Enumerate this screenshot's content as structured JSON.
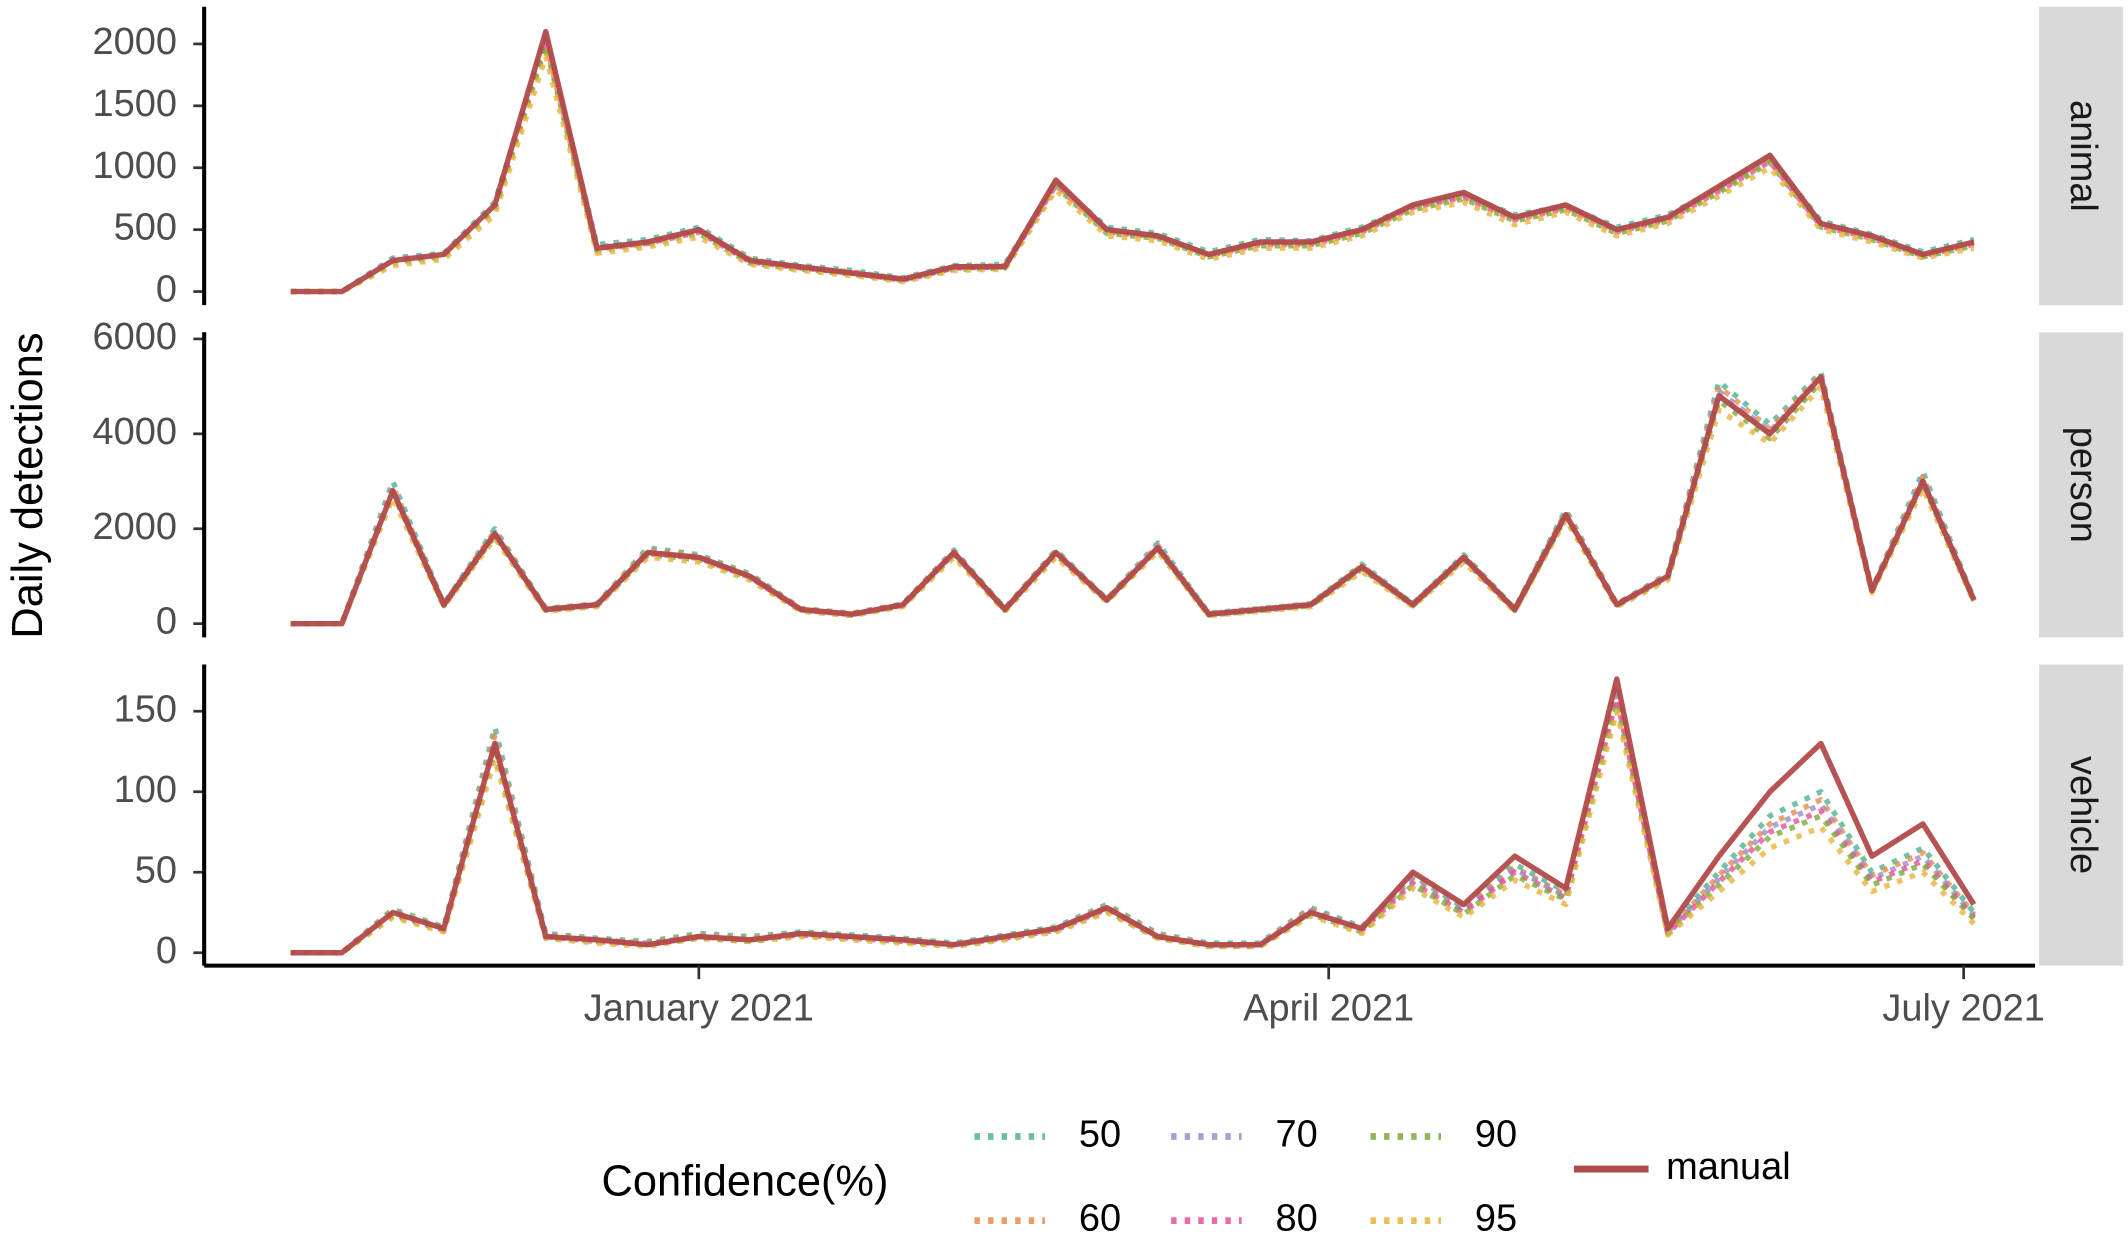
{
  "chart_data": {
    "type": "line",
    "ylabel": "Daily detections",
    "legend_title": "Confidence(%)",
    "xlim": [
      2020.806,
      2021.524
    ],
    "xticks": [
      {
        "value": 2021,
        "label": "January 2021"
      },
      {
        "value": 2021.247,
        "label": "April 2021"
      },
      {
        "value": 2021.496,
        "label": "July 2021"
      }
    ],
    "x": [
      2020.84,
      2020.86,
      2020.88,
      2020.9,
      2020.92,
      2020.94,
      2020.96,
      2020.98,
      2021.0,
      2021.02,
      2021.04,
      2021.06,
      2021.08,
      2021.1,
      2021.12,
      2021.14,
      2021.16,
      2021.18,
      2021.2,
      2021.22,
      2021.24,
      2021.26,
      2021.28,
      2021.3,
      2021.32,
      2021.34,
      2021.36,
      2021.38,
      2021.4,
      2021.42,
      2021.44,
      2021.46,
      2021.48,
      2021.5
    ],
    "facets": [
      {
        "label": "animal",
        "ylim": [
          -110,
          2300
        ],
        "yticks": [
          0,
          500,
          1000,
          1500,
          2000
        ],
        "series": [
          {
            "name": "50",
            "color": "#4db392",
            "line": "dotted",
            "values": [
              0,
              0,
              270,
              310,
              720,
              2050,
              380,
              420,
              520,
              270,
              210,
              170,
              110,
              210,
              220,
              880,
              520,
              470,
              320,
              420,
              410,
              520,
              690,
              780,
              620,
              690,
              520,
              620,
              830,
              1080,
              570,
              460,
              320,
              420
            ]
          },
          {
            "name": "60",
            "color": "#e98b4c",
            "line": "dotted",
            "values": [
              0,
              0,
              240,
              290,
              690,
              2000,
              340,
              390,
              490,
              260,
              190,
              160,
              100,
              200,
              210,
              870,
              490,
              440,
              300,
              390,
              390,
              490,
              680,
              770,
              590,
              680,
              490,
              590,
              820,
              1060,
              540,
              440,
              290,
              390
            ]
          },
          {
            "name": "70",
            "color": "#9b8fc8",
            "line": "dotted",
            "values": [
              0,
              0,
              260,
              300,
              700,
              2080,
              360,
              400,
              500,
              250,
              200,
              150,
              100,
              190,
              200,
              890,
              500,
              450,
              290,
              400,
              400,
              500,
              700,
              790,
              600,
              700,
              500,
              600,
              840,
              1090,
              550,
              450,
              300,
              400
            ]
          },
          {
            "name": "80",
            "color": "#e7519a",
            "line": "dotted",
            "values": [
              0,
              0,
              250,
              290,
              680,
              2020,
              350,
              390,
              480,
              240,
              190,
              150,
              90,
              190,
              200,
              860,
              480,
              440,
              290,
              380,
              380,
              480,
              680,
              760,
              580,
              670,
              480,
              580,
              810,
              1050,
              530,
              430,
              290,
              380
            ]
          },
          {
            "name": "90",
            "color": "#7cab3c",
            "line": "dotted",
            "values": [
              0,
              0,
              230,
              280,
              660,
              1980,
              330,
              380,
              470,
              230,
              180,
              140,
              90,
              180,
              190,
              850,
              470,
              430,
              280,
              370,
              370,
              470,
              660,
              750,
              570,
              660,
              470,
              570,
              800,
              1040,
              520,
              420,
              280,
              370
            ]
          },
          {
            "name": "95",
            "color": "#e8b33c",
            "line": "dotted",
            "values": [
              0,
              0,
              210,
              260,
              620,
              1900,
              310,
              360,
              440,
              220,
              170,
              130,
              80,
              170,
              180,
              820,
              450,
              410,
              260,
              350,
              350,
              450,
              640,
              720,
              540,
              640,
              450,
              550,
              770,
              1000,
              500,
              400,
              270,
              350
            ]
          },
          {
            "name": "manual",
            "color": "#b24a4a",
            "line": "solid",
            "values": [
              0,
              0,
              250,
              300,
              700,
              2100,
              350,
              400,
              500,
              250,
              200,
              150,
              100,
              200,
              200,
              900,
              500,
              450,
              300,
              400,
              400,
              500,
              700,
              800,
              600,
              700,
              500,
              600,
              850,
              1100,
              550,
              450,
              300,
              400
            ]
          }
        ]
      },
      {
        "label": "person",
        "ylim": [
          -290,
          6140
        ],
        "yticks": [
          0,
          2000,
          4000,
          6000
        ],
        "series": [
          {
            "name": "50",
            "color": "#4db392",
            "line": "dotted",
            "values": [
              0,
              0,
              3000,
              420,
              2000,
              320,
              420,
              1600,
              1450,
              1050,
              320,
              220,
              420,
              1550,
              320,
              1550,
              520,
              1700,
              220,
              320,
              420,
              1250,
              420,
              1450,
              320,
              2400,
              420,
              1050,
              5100,
              4200,
              5300,
              720,
              3200,
              520
            ]
          },
          {
            "name": "60",
            "color": "#e98b4c",
            "line": "dotted",
            "values": [
              0,
              0,
              2900,
              410,
              1950,
              310,
              410,
              1550,
              1420,
              1020,
              310,
              210,
              410,
              1520,
              310,
              1520,
              510,
              1650,
              210,
              310,
              410,
              1220,
              410,
              1420,
              310,
              2350,
              410,
              1020,
              5000,
              4100,
              5250,
              710,
              3100,
              510
            ]
          },
          {
            "name": "70",
            "color": "#9b8fc8",
            "line": "dotted",
            "values": [
              0,
              0,
              2850,
              400,
              1900,
              300,
              400,
              1500,
              1400,
              1000,
              300,
              200,
              400,
              1500,
              300,
              1500,
              500,
              1620,
              200,
              300,
              400,
              1200,
              400,
              1400,
              300,
              2300,
              400,
              1000,
              4900,
              4050,
              5200,
              700,
              3050,
              500
            ]
          },
          {
            "name": "80",
            "color": "#e7519a",
            "line": "dotted",
            "values": [
              0,
              0,
              2800,
              390,
              1880,
              290,
              390,
              1480,
              1380,
              980,
              290,
              190,
              390,
              1480,
              290,
              1480,
              490,
              1600,
              190,
              290,
              390,
              1180,
              390,
              1380,
              290,
              2280,
              390,
              980,
              4800,
              4000,
              5150,
              690,
              3000,
              490
            ]
          },
          {
            "name": "90",
            "color": "#7cab3c",
            "line": "dotted",
            "values": [
              0,
              0,
              2750,
              380,
              1850,
              280,
              380,
              1450,
              1350,
              960,
              280,
              180,
              380,
              1450,
              280,
              1450,
              480,
              1570,
              180,
              280,
              380,
              1150,
              380,
              1350,
              280,
              2250,
              380,
              960,
              4700,
              3900,
              5100,
              680,
              2950,
              480
            ]
          },
          {
            "name": "95",
            "color": "#e8b33c",
            "line": "dotted",
            "values": [
              0,
              0,
              2650,
              360,
              1800,
              260,
              360,
              1400,
              1300,
              920,
              260,
              170,
              360,
              1400,
              260,
              1400,
              460,
              1520,
              170,
              260,
              360,
              1100,
              360,
              1300,
              260,
              2200,
              360,
              920,
              4500,
              3800,
              5000,
              650,
              2850,
              460
            ]
          },
          {
            "name": "manual",
            "color": "#b24a4a",
            "line": "solid",
            "values": [
              0,
              0,
              2800,
              400,
              1900,
              300,
              400,
              1500,
              1400,
              1000,
              300,
              200,
              400,
              1500,
              300,
              1500,
              500,
              1600,
              200,
              300,
              400,
              1200,
              400,
              1400,
              300,
              2300,
              400,
              1000,
              4800,
              4000,
              5200,
              700,
              3000,
              500
            ]
          }
        ]
      },
      {
        "label": "vehicle",
        "ylim": [
          -8,
          179
        ],
        "yticks": [
          0,
          50,
          100,
          150
        ],
        "series": [
          {
            "name": "50",
            "color": "#4db392",
            "line": "dotted",
            "values": [
              0,
              0,
              27,
              16,
              140,
              12,
              9,
              7,
              12,
              10,
              13,
              11,
              9,
              6,
              11,
              16,
              30,
              12,
              6,
              6,
              28,
              16,
              48,
              28,
              55,
              38,
              165,
              14,
              50,
              85,
              100,
              50,
              65,
              25
            ]
          },
          {
            "name": "60",
            "color": "#e98b4c",
            "line": "dotted",
            "values": [
              0,
              0,
              26,
              15,
              135,
              11,
              8,
              6,
              11,
              9,
              12,
              10,
              8,
              5,
              10,
              15,
              29,
              11,
              5,
              5,
              27,
              15,
              46,
              27,
              53,
              36,
              162,
              13,
              48,
              80,
              95,
              48,
              62,
              24
            ]
          },
          {
            "name": "70",
            "color": "#9b8fc8",
            "line": "dotted",
            "values": [
              0,
              0,
              25,
              15,
              132,
              10,
              8,
              6,
              10,
              8,
              12,
              10,
              8,
              5,
              10,
              15,
              28,
              10,
              5,
              5,
              26,
              15,
              45,
              26,
              52,
              35,
              160,
              13,
              46,
              78,
              92,
              46,
              60,
              23
            ]
          },
          {
            "name": "80",
            "color": "#e7519a",
            "line": "dotted",
            "values": [
              0,
              0,
              24,
              14,
              128,
              10,
              7,
              5,
              10,
              8,
              11,
              9,
              7,
              5,
              9,
              14,
              27,
              10,
              5,
              5,
              25,
              14,
              43,
              25,
              50,
              34,
              158,
              12,
              44,
              75,
              88,
              44,
              57,
              22
            ]
          },
          {
            "name": "90",
            "color": "#7cab3c",
            "line": "dotted",
            "values": [
              0,
              0,
              23,
              14,
              125,
              9,
              7,
              5,
              9,
              7,
              11,
              9,
              7,
              4,
              9,
              14,
              26,
              9,
              4,
              4,
              24,
              13,
              42,
              24,
              48,
              33,
              155,
              12,
              42,
              72,
              85,
              42,
              55,
              21
            ]
          },
          {
            "name": "95",
            "color": "#e8b33c",
            "line": "dotted",
            "values": [
              0,
              0,
              22,
              13,
              120,
              9,
              6,
              4,
              9,
              7,
              10,
              8,
              6,
              4,
              8,
              13,
              25,
              9,
              4,
              4,
              23,
              12,
              40,
              22,
              45,
              30,
              150,
              11,
              38,
              65,
              78,
              38,
              50,
              18
            ]
          },
          {
            "name": "manual",
            "color": "#b24a4a",
            "line": "solid",
            "values": [
              0,
              0,
              25,
              15,
              130,
              10,
              8,
              5,
              10,
              8,
              12,
              10,
              8,
              5,
              10,
              15,
              28,
              10,
              5,
              5,
              25,
              15,
              50,
              30,
              60,
              40,
              170,
              15,
              60,
              100,
              130,
              60,
              80,
              30
            ]
          }
        ]
      }
    ]
  }
}
